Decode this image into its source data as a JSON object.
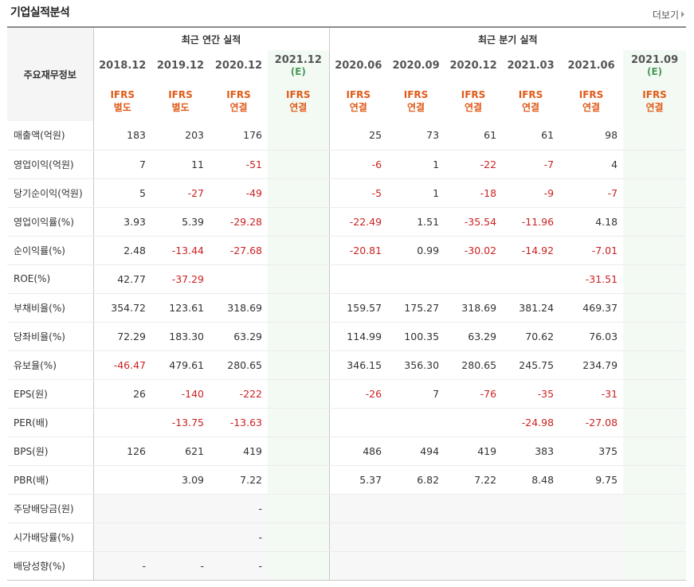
{
  "title": "기업실적분석",
  "more_label": "더보기",
  "header": {
    "item_label": "주요재무정보",
    "annual_group": "최근 연간 실적",
    "quarter_group": "최근 분기 실적"
  },
  "periods": [
    {
      "label": "2018.12",
      "est": "",
      "acc1": "IFRS",
      "acc2": "별도"
    },
    {
      "label": "2019.12",
      "est": "",
      "acc1": "IFRS",
      "acc2": "별도"
    },
    {
      "label": "2020.12",
      "est": "",
      "acc1": "IFRS",
      "acc2": "연결"
    },
    {
      "label": "2021.12",
      "est": "(E)",
      "acc1": "IFRS",
      "acc2": "연결"
    },
    {
      "label": "2020.06",
      "est": "",
      "acc1": "IFRS",
      "acc2": "연결"
    },
    {
      "label": "2020.09",
      "est": "",
      "acc1": "IFRS",
      "acc2": "연결"
    },
    {
      "label": "2020.12",
      "est": "",
      "acc1": "IFRS",
      "acc2": "연결"
    },
    {
      "label": "2021.03",
      "est": "",
      "acc1": "IFRS",
      "acc2": "연결"
    },
    {
      "label": "2021.06",
      "est": "",
      "acc1": "IFRS",
      "acc2": "연결"
    },
    {
      "label": "2021.09",
      "est": "(E)",
      "acc1": "IFRS",
      "acc2": "연결"
    }
  ],
  "rows": [
    {
      "label": "매출액(억원)",
      "values": [
        "183",
        "203",
        "176",
        "",
        "25",
        "73",
        "61",
        "61",
        "98",
        ""
      ]
    },
    {
      "label": "영업이익(억원)",
      "values": [
        "7",
        "11",
        "-51",
        "",
        "-6",
        "1",
        "-22",
        "-7",
        "4",
        ""
      ]
    },
    {
      "label": "당기순이익(억원)",
      "values": [
        "5",
        "-27",
        "-49",
        "",
        "-5",
        "1",
        "-18",
        "-9",
        "-7",
        ""
      ]
    },
    {
      "label": "영업이익률(%)",
      "values": [
        "3.93",
        "5.39",
        "-29.28",
        "",
        "-22.49",
        "1.51",
        "-35.54",
        "-11.96",
        "4.18",
        ""
      ]
    },
    {
      "label": "순이익률(%)",
      "values": [
        "2.48",
        "-13.44",
        "-27.68",
        "",
        "-20.81",
        "0.99",
        "-30.02",
        "-14.92",
        "-7.01",
        ""
      ]
    },
    {
      "label": "ROE(%)",
      "values": [
        "42.77",
        "-37.29",
        "",
        "",
        "",
        "",
        "",
        "",
        "-31.51",
        ""
      ]
    },
    {
      "label": "부채비율(%)",
      "values": [
        "354.72",
        "123.61",
        "318.69",
        "",
        "159.57",
        "175.27",
        "318.69",
        "381.24",
        "469.37",
        ""
      ]
    },
    {
      "label": "당좌비율(%)",
      "values": [
        "72.29",
        "183.30",
        "63.29",
        "",
        "114.99",
        "100.35",
        "63.29",
        "70.62",
        "76.03",
        ""
      ]
    },
    {
      "label": "유보율(%)",
      "values": [
        "-46.47",
        "479.61",
        "280.65",
        "",
        "346.15",
        "356.30",
        "280.65",
        "245.75",
        "234.79",
        ""
      ]
    },
    {
      "label": "EPS(원)",
      "values": [
        "26",
        "-140",
        "-222",
        "",
        "-26",
        "7",
        "-76",
        "-35",
        "-31",
        ""
      ]
    },
    {
      "label": "PER(배)",
      "values": [
        "",
        "-13.75",
        "-13.63",
        "",
        "",
        "",
        "",
        "-24.98",
        "-27.08",
        ""
      ]
    },
    {
      "label": "BPS(원)",
      "values": [
        "126",
        "621",
        "419",
        "",
        "486",
        "494",
        "419",
        "383",
        "375",
        ""
      ]
    },
    {
      "label": "PBR(배)",
      "values": [
        "",
        "3.09",
        "7.22",
        "",
        "5.37",
        "6.82",
        "7.22",
        "8.48",
        "9.75",
        ""
      ]
    },
    {
      "label": "주당배당금(원)",
      "values": [
        "",
        "",
        "-",
        "",
        "",
        "",
        "",
        "",
        "",
        ""
      ]
    },
    {
      "label": "시가배당률(%)",
      "values": [
        "",
        "",
        "-",
        "",
        "",
        "",
        "",
        "",
        "",
        ""
      ]
    },
    {
      "label": "배당성향(%)",
      "values": [
        "-",
        "-",
        "-",
        "",
        "",
        "",
        "",
        "",
        "",
        ""
      ]
    }
  ],
  "colors": {
    "accounting_label": "#e05a18",
    "negative_value": "#cc2222",
    "estimate_label": "#4a9a5a",
    "estimate_bg": "#f3faf3"
  }
}
